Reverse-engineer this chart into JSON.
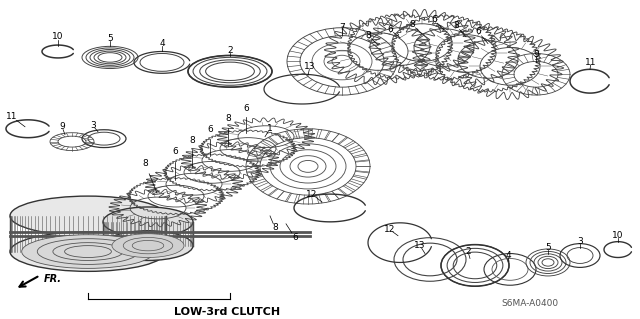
{
  "background_color": "#ffffff",
  "label_LOW3rd": "LOW-3rd CLUTCH",
  "label_FR": "FR.",
  "label_code": "S6MA–A0400",
  "label_code2": "S6MA-A0400",
  "fig_width": 6.4,
  "fig_height": 3.19,
  "dpi": 100,
  "text_color": "#000000",
  "line_color": "#333333",
  "part_color": "#555555",
  "lw_main": 0.8,
  "lw_thin": 0.5,
  "lw_thick": 1.2
}
